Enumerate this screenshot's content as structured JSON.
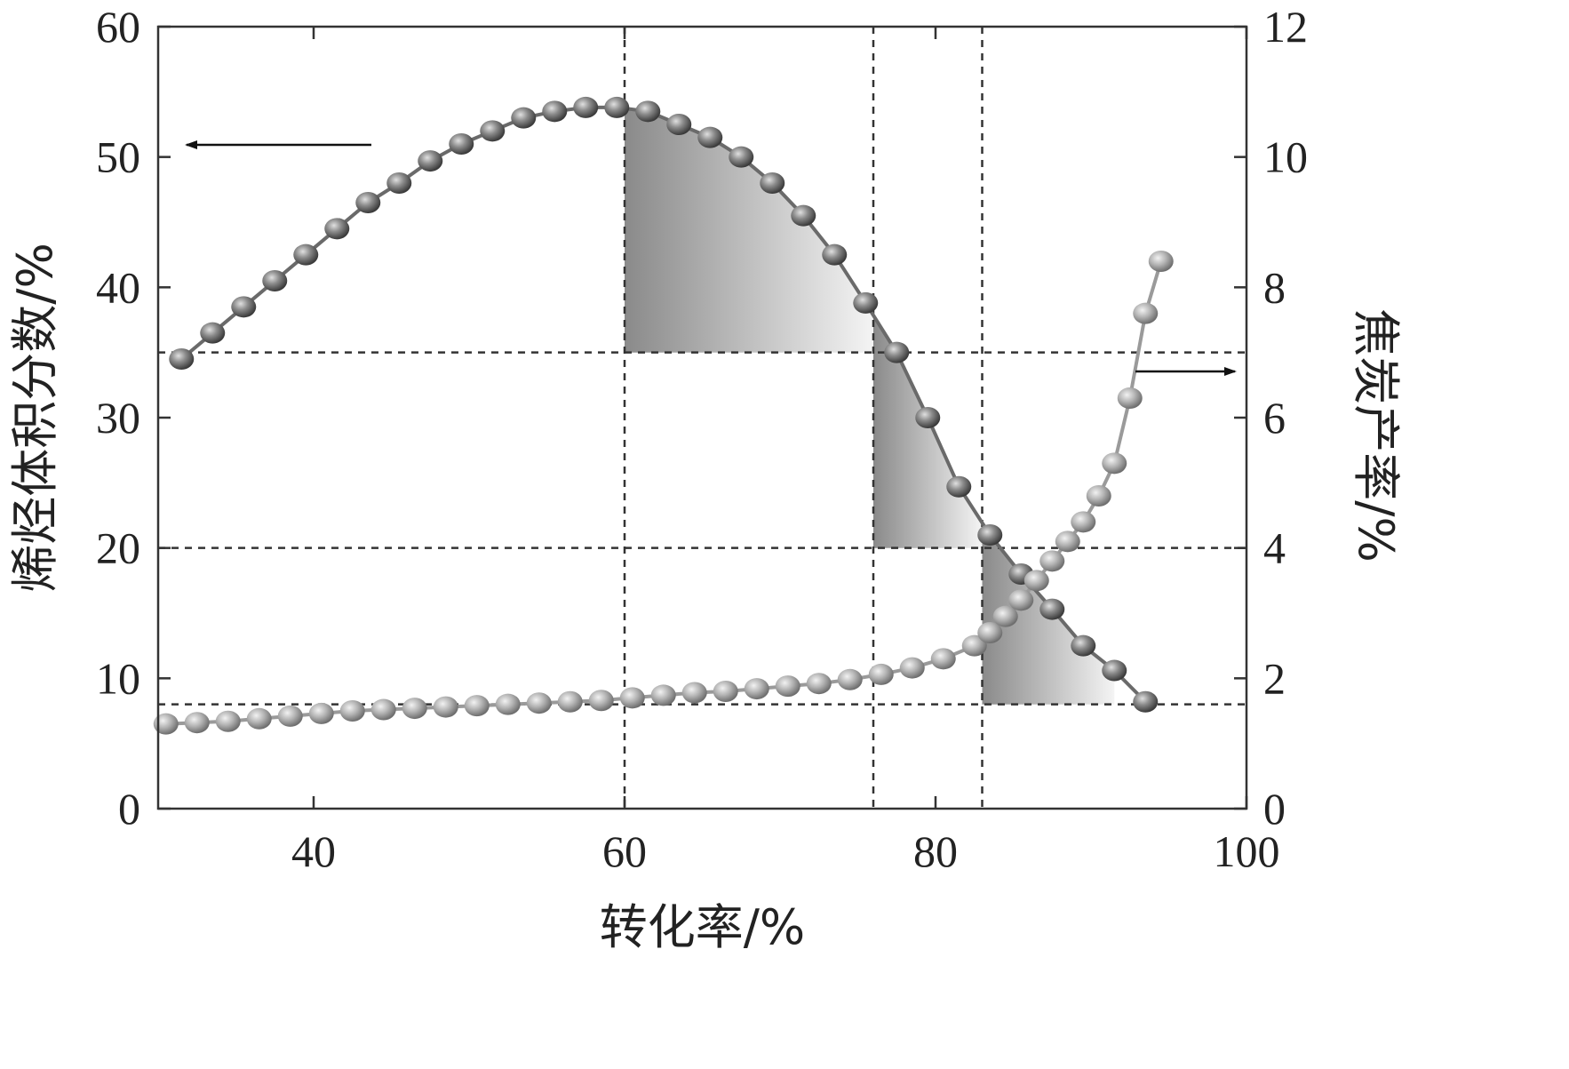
{
  "chart_data": {
    "type": "line",
    "title": "",
    "xlabel": "转化率/%",
    "ylabel_left": "烯烃体积分数/%",
    "ylabel_right": "焦炭产率/%",
    "x_range": [
      30,
      100
    ],
    "y_left_range": [
      0,
      60
    ],
    "y_right_range": [
      0,
      12
    ],
    "x_ticks": [
      40,
      60,
      80,
      100
    ],
    "y_left_ticks": [
      0,
      10,
      20,
      30,
      40,
      50,
      60
    ],
    "y_right_ticks": [
      0,
      2,
      4,
      6,
      8,
      10,
      12
    ],
    "grid": false,
    "reference_lines": {
      "x": [
        60,
        76,
        83
      ],
      "y_left": [
        35,
        20,
        8
      ]
    },
    "shaded_regions": [
      {
        "x_from": 60,
        "x_to": 76,
        "y_floor": 35
      },
      {
        "x_from": 76,
        "x_to": 83,
        "y_floor": 20
      },
      {
        "x_from": 83,
        "x_to": 91.5,
        "y_floor": 8
      }
    ],
    "annotations": [
      {
        "type": "arrow",
        "direction": "left",
        "points_to": "left-axis",
        "series": "olefin"
      },
      {
        "type": "arrow",
        "direction": "right",
        "points_to": "right-axis",
        "series": "coke"
      }
    ],
    "series": [
      {
        "axis": "left",
        "color": "#6a6a6a",
        "x": [
          31.5,
          33.5,
          35.5,
          37.5,
          39.5,
          41.5,
          43.5,
          45.5,
          47.5,
          49.5,
          51.5,
          53.5,
          55.5,
          57.5,
          59.5,
          61.5,
          63.5,
          65.5,
          67.5,
          69.5,
          71.5,
          73.5,
          75.5,
          77.5,
          79.5,
          81.5,
          83.5,
          85.5,
          87.5,
          89.5,
          91.5,
          93.5
        ],
        "y": [
          34.5,
          36.5,
          38.5,
          40.5,
          42.5,
          44.5,
          46.5,
          48,
          49.7,
          51,
          52,
          53,
          53.5,
          53.8,
          53.8,
          53.5,
          52.5,
          51.5,
          50,
          48,
          45.5,
          42.5,
          38.8,
          35,
          30,
          24.7,
          21,
          18,
          15.3,
          12.5,
          10.6,
          8.2
        ]
      },
      {
        "axis": "right",
        "color": "#9a9a9a",
        "x": [
          30.5,
          32.5,
          34.5,
          36.5,
          38.5,
          40.5,
          42.5,
          44.5,
          46.5,
          48.5,
          50.5,
          52.5,
          54.5,
          56.5,
          58.5,
          60.5,
          62.5,
          64.5,
          66.5,
          68.5,
          70.5,
          72.5,
          74.5,
          76.5,
          78.5,
          80.5,
          82.5,
          83.5,
          84.5,
          85.5,
          86.5,
          87.5,
          88.5,
          89.5,
          90.5,
          91.5,
          92.5,
          93.5,
          94.5
        ],
        "y": [
          1.3,
          1.32,
          1.34,
          1.38,
          1.42,
          1.46,
          1.5,
          1.52,
          1.54,
          1.56,
          1.58,
          1.6,
          1.62,
          1.64,
          1.66,
          1.7,
          1.74,
          1.78,
          1.8,
          1.84,
          1.88,
          1.92,
          1.98,
          2.06,
          2.16,
          2.3,
          2.5,
          2.7,
          2.95,
          3.2,
          3.5,
          3.8,
          4.1,
          4.4,
          4.8,
          5.3,
          6.3,
          7.6,
          8.4
        ]
      }
    ]
  }
}
